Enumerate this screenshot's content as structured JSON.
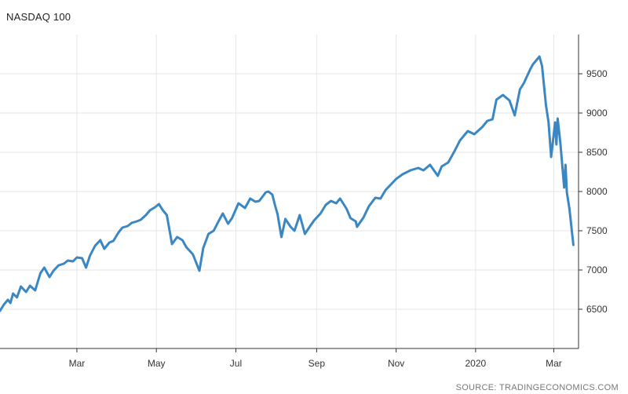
{
  "chart_data": {
    "type": "line",
    "title": "NASDAQ 100",
    "source": "SOURCE: TRADINGECONOMICS.COM",
    "xlabel": "",
    "ylabel": "",
    "ylim": [
      6000,
      10000
    ],
    "yticks": [
      6500,
      7000,
      7500,
      8000,
      8500,
      9000,
      9500
    ],
    "x_range": [
      "2019-01-01",
      "2020-03-20"
    ],
    "xticks": [
      {
        "date": "2019-03-01",
        "label": "Mar"
      },
      {
        "date": "2019-05-01",
        "label": "May"
      },
      {
        "date": "2019-07-01",
        "label": "Jul"
      },
      {
        "date": "2019-09-01",
        "label": "Sep"
      },
      {
        "date": "2019-11-01",
        "label": "Nov"
      },
      {
        "date": "2020-01-01",
        "label": "2020"
      },
      {
        "date": "2020-03-01",
        "label": "Mar"
      }
    ],
    "grid": true,
    "y_axis_side": "right",
    "line_color": "#3a87c4",
    "series": [
      {
        "name": "",
        "points": [
          [
            "2019-01-01",
            6480
          ],
          [
            "2019-01-04",
            6560
          ],
          [
            "2019-01-07",
            6620
          ],
          [
            "2019-01-09",
            6580
          ],
          [
            "2019-01-11",
            6700
          ],
          [
            "2019-01-14",
            6650
          ],
          [
            "2019-01-17",
            6790
          ],
          [
            "2019-01-21",
            6720
          ],
          [
            "2019-01-24",
            6800
          ],
          [
            "2019-01-28",
            6740
          ],
          [
            "2019-02-01",
            6960
          ],
          [
            "2019-02-04",
            7030
          ],
          [
            "2019-02-08",
            6910
          ],
          [
            "2019-02-11",
            6990
          ],
          [
            "2019-02-15",
            7060
          ],
          [
            "2019-02-19",
            7080
          ],
          [
            "2019-02-22",
            7120
          ],
          [
            "2019-02-26",
            7110
          ],
          [
            "2019-03-01",
            7160
          ],
          [
            "2019-03-05",
            7150
          ],
          [
            "2019-03-08",
            7030
          ],
          [
            "2019-03-11",
            7180
          ],
          [
            "2019-03-15",
            7310
          ],
          [
            "2019-03-19",
            7380
          ],
          [
            "2019-03-22",
            7270
          ],
          [
            "2019-03-26",
            7350
          ],
          [
            "2019-03-29",
            7370
          ],
          [
            "2019-04-02",
            7480
          ],
          [
            "2019-04-05",
            7540
          ],
          [
            "2019-04-09",
            7560
          ],
          [
            "2019-04-12",
            7600
          ],
          [
            "2019-04-16",
            7620
          ],
          [
            "2019-04-19",
            7640
          ],
          [
            "2019-04-23",
            7700
          ],
          [
            "2019-04-26",
            7760
          ],
          [
            "2019-04-30",
            7800
          ],
          [
            "2019-05-03",
            7840
          ],
          [
            "2019-05-06",
            7760
          ],
          [
            "2019-05-09",
            7700
          ],
          [
            "2019-05-13",
            7330
          ],
          [
            "2019-05-17",
            7420
          ],
          [
            "2019-05-21",
            7380
          ],
          [
            "2019-05-24",
            7290
          ],
          [
            "2019-05-29",
            7200
          ],
          [
            "2019-06-03",
            6990
          ],
          [
            "2019-06-06",
            7280
          ],
          [
            "2019-06-10",
            7460
          ],
          [
            "2019-06-14",
            7500
          ],
          [
            "2019-06-18",
            7630
          ],
          [
            "2019-06-21",
            7720
          ],
          [
            "2019-06-25",
            7590
          ],
          [
            "2019-06-28",
            7660
          ],
          [
            "2019-07-03",
            7850
          ],
          [
            "2019-07-08",
            7790
          ],
          [
            "2019-07-12",
            7910
          ],
          [
            "2019-07-16",
            7870
          ],
          [
            "2019-07-19",
            7880
          ],
          [
            "2019-07-24",
            7990
          ],
          [
            "2019-07-26",
            8000
          ],
          [
            "2019-07-29",
            7960
          ],
          [
            "2019-07-31",
            7830
          ],
          [
            "2019-08-02",
            7710
          ],
          [
            "2019-08-05",
            7420
          ],
          [
            "2019-08-08",
            7650
          ],
          [
            "2019-08-12",
            7550
          ],
          [
            "2019-08-15",
            7500
          ],
          [
            "2019-08-19",
            7700
          ],
          [
            "2019-08-23",
            7460
          ],
          [
            "2019-08-27",
            7560
          ],
          [
            "2019-08-30",
            7630
          ],
          [
            "2019-09-04",
            7720
          ],
          [
            "2019-09-08",
            7830
          ],
          [
            "2019-09-12",
            7880
          ],
          [
            "2019-09-16",
            7850
          ],
          [
            "2019-09-19",
            7910
          ],
          [
            "2019-09-24",
            7780
          ],
          [
            "2019-09-27",
            7660
          ],
          [
            "2019-10-01",
            7620
          ],
          [
            "2019-10-02",
            7550
          ],
          [
            "2019-10-07",
            7670
          ],
          [
            "2019-10-11",
            7810
          ],
          [
            "2019-10-16",
            7920
          ],
          [
            "2019-10-20",
            7910
          ],
          [
            "2019-10-24",
            8020
          ],
          [
            "2019-10-28",
            8090
          ],
          [
            "2019-11-01",
            8160
          ],
          [
            "2019-11-06",
            8220
          ],
          [
            "2019-11-12",
            8270
          ],
          [
            "2019-11-18",
            8300
          ],
          [
            "2019-11-22",
            8270
          ],
          [
            "2019-11-27",
            8340
          ],
          [
            "2019-12-03",
            8200
          ],
          [
            "2019-12-06",
            8320
          ],
          [
            "2019-12-11",
            8370
          ],
          [
            "2019-12-16",
            8520
          ],
          [
            "2019-12-20",
            8650
          ],
          [
            "2019-12-26",
            8770
          ],
          [
            "2019-12-31",
            8730
          ],
          [
            "2020-01-06",
            8820
          ],
          [
            "2020-01-10",
            8900
          ],
          [
            "2020-01-14",
            8920
          ],
          [
            "2020-01-17",
            9170
          ],
          [
            "2020-01-22",
            9230
          ],
          [
            "2020-01-27",
            9160
          ],
          [
            "2020-01-31",
            8970
          ],
          [
            "2020-02-04",
            9300
          ],
          [
            "2020-02-07",
            9380
          ],
          [
            "2020-02-12",
            9560
          ],
          [
            "2020-02-14",
            9620
          ],
          [
            "2020-02-19",
            9720
          ],
          [
            "2020-02-21",
            9600
          ],
          [
            "2020-02-24",
            9100
          ],
          [
            "2020-02-26",
            8880
          ],
          [
            "2020-02-28",
            8440
          ],
          [
            "2020-03-02",
            8880
          ],
          [
            "2020-03-03",
            8600
          ],
          [
            "2020-03-04",
            8930
          ],
          [
            "2020-03-06",
            8620
          ],
          [
            "2020-03-09",
            8050
          ],
          [
            "2020-03-10",
            8340
          ],
          [
            "2020-03-11",
            7990
          ],
          [
            "2020-03-13",
            7780
          ],
          [
            "2020-03-16",
            7320
          ]
        ]
      }
    ]
  }
}
